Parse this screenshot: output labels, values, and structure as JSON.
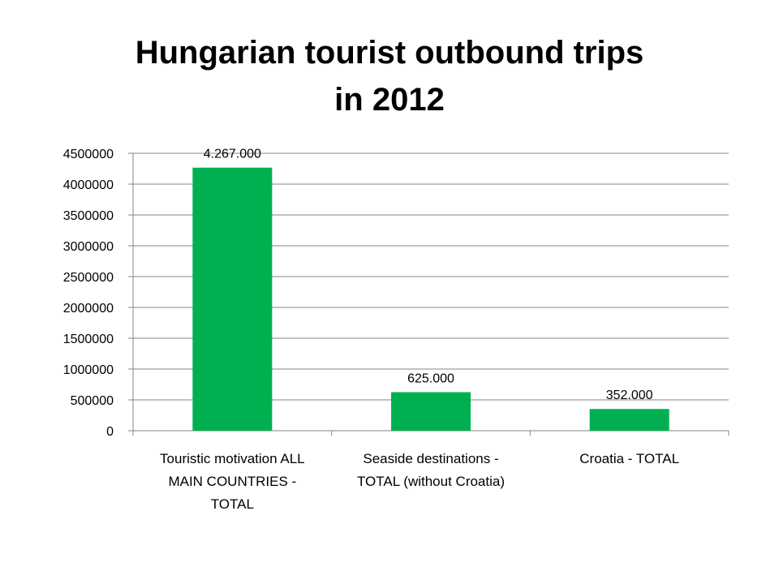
{
  "colors": {
    "bar": "#00b050",
    "grid": "#868686",
    "axis": "#868686"
  },
  "chart_data": {
    "type": "bar",
    "title_lines": [
      "Hungarian tourist outbound trips",
      "in 2012"
    ],
    "categories": [
      "Touristic motivation ALL MAIN COUNTRIES - TOTAL",
      "Seaside destinations - TOTAL (without Croatia)",
      "Croatia - TOTAL"
    ],
    "category_lines": [
      [
        "Touristic motivation ALL",
        "MAIN COUNTRIES -",
        "TOTAL"
      ],
      [
        "Seaside destinations -",
        "TOTAL (without Croatia)"
      ],
      [
        "Croatia - TOTAL"
      ]
    ],
    "values": [
      4267000,
      625000,
      352000
    ],
    "data_labels": [
      "4.267.000",
      "625.000",
      "352.000"
    ],
    "ylim": [
      0,
      4500000
    ],
    "yticks": [
      "0",
      "500000",
      "1000000",
      "1500000",
      "2000000",
      "2500000",
      "3000000",
      "3500000",
      "4000000",
      "4500000"
    ],
    "ytick_values": [
      0,
      500000,
      1000000,
      1500000,
      2000000,
      2500000,
      3000000,
      3500000,
      4000000,
      4500000
    ],
    "grid": true,
    "legend": "none"
  }
}
